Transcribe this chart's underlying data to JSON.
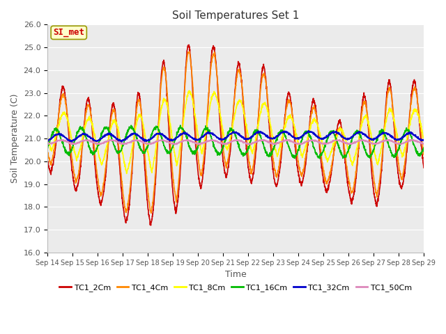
{
  "title": "Soil Temperatures Set 1",
  "xlabel": "Time",
  "ylabel": "Soil Temperature (C)",
  "ylim": [
    16.0,
    26.0
  ],
  "yticks": [
    16.0,
    17.0,
    18.0,
    19.0,
    20.0,
    21.0,
    22.0,
    23.0,
    24.0,
    25.0,
    26.0
  ],
  "xtick_labels": [
    "Sep 14",
    "Sep 15",
    "Sep 16",
    "Sep 17",
    "Sep 18",
    "Sep 19",
    "Sep 20",
    "Sep 21",
    "Sep 22",
    "Sep 23",
    "Sep 24",
    "Sep 25",
    "Sep 26",
    "Sep 27",
    "Sep 28",
    "Sep 29"
  ],
  "annotation_text": "SI_met",
  "annotation_color": "#cc0000",
  "annotation_bg": "#ffffcc",
  "annotation_edge": "#999900",
  "bg_color": "#ebebeb",
  "grid_color": "#ffffff",
  "series": [
    {
      "label": "TC1_2Cm",
      "color": "#cc0000",
      "lw": 1.2
    },
    {
      "label": "TC1_4Cm",
      "color": "#ff8800",
      "lw": 1.2
    },
    {
      "label": "TC1_8Cm",
      "color": "#ffff00",
      "lw": 1.2
    },
    {
      "label": "TC1_16Cm",
      "color": "#00bb00",
      "lw": 1.2
    },
    {
      "label": "TC1_32Cm",
      "color": "#0000cc",
      "lw": 1.2
    },
    {
      "label": "TC1_50Cm",
      "color": "#dd88bb",
      "lw": 1.2
    }
  ],
  "n_days": 15,
  "pts_per_day": 144
}
